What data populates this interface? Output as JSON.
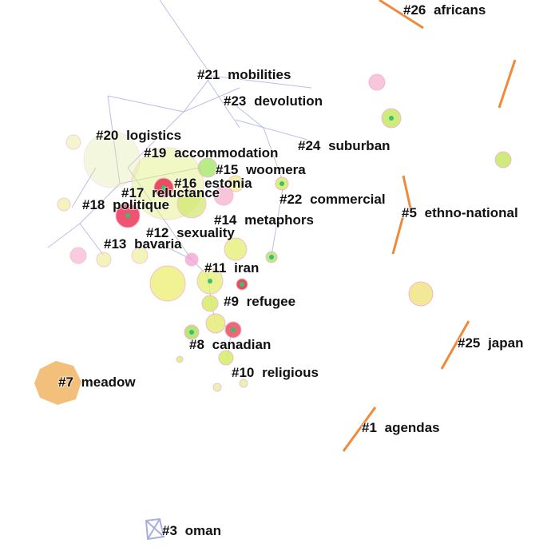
{
  "clusters": [
    {
      "label": "#26 africans"
    },
    {
      "label": "#21 mobilities"
    },
    {
      "label": "#23 devolution"
    },
    {
      "label": "#20 logistics"
    },
    {
      "label": "#24 suburban"
    },
    {
      "label": "#19 accommodation"
    },
    {
      "label": "#15 woomera"
    },
    {
      "label": "#16 estonia"
    },
    {
      "label": "#17 reluctance"
    },
    {
      "label": "#22 commercial"
    },
    {
      "label": "#18 politique"
    },
    {
      "label": "#5 ethno-national"
    },
    {
      "label": "#14 metaphors"
    },
    {
      "label": "#12 sexuality"
    },
    {
      "label": "#13 bavaria"
    },
    {
      "label": "#11 iran"
    },
    {
      "label": "#9 refugee"
    },
    {
      "label": "#25 japan"
    },
    {
      "label": "#8 canadian"
    },
    {
      "label": "#10 religious"
    },
    {
      "label": "#7 meadow"
    },
    {
      "label": "#1 agendas"
    },
    {
      "label": "#3 oman"
    }
  ]
}
